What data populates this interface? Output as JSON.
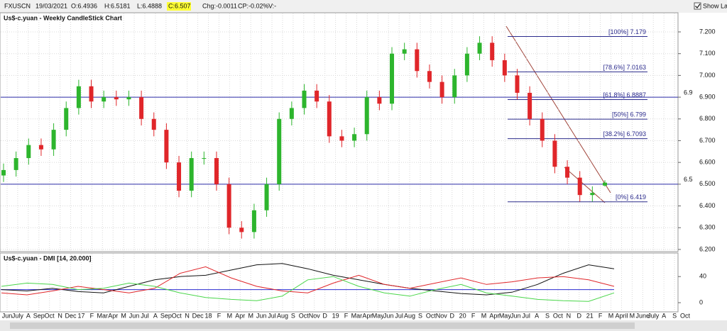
{
  "toolbar": {
    "symbol": "FXUSCN",
    "date": "19/03/2021",
    "open": "O:6.4936",
    "high": "H:6.5181",
    "low": "L:6.4888",
    "close": "C:6.507",
    "change": "Chg:-0.0011",
    "change_pct": "CP:-0.02%",
    "volume": "V:-",
    "show_last": "Show Last"
  },
  "x_labels": [
    "Jun",
    "July",
    "A",
    "Sep",
    "Oct",
    "N",
    "Dec",
    "17",
    "F",
    "Mar",
    "Apr",
    "M",
    "Jun",
    "Jul",
    "A",
    "Sep",
    "Oct",
    "N",
    "Dec",
    "18",
    "F",
    "M",
    "Apr",
    "M",
    "Jun",
    "Jul",
    "Aug",
    "S",
    "Oct",
    "Nov",
    "D",
    "19",
    "F",
    "Mar",
    "Apr",
    "May",
    "Jun",
    "Jul",
    "Aug",
    "S",
    "Oct",
    "Nov",
    "D",
    "20",
    "F",
    "M",
    "Apr",
    "May",
    "Jun",
    "Jul",
    "A",
    "S",
    "Oct",
    "N",
    "D",
    "21",
    "F",
    "M",
    "April",
    "M",
    "June",
    "July",
    "A",
    "S",
    "Oct"
  ],
  "chart_data": [
    {
      "type": "candlestick",
      "title": "Us$-c.yuan - Weekly CandleStick Chart",
      "up_color": "#2db52d",
      "down_color": "#e0262a",
      "open": [
        6.54,
        6.565,
        6.62,
        6.68,
        6.66,
        6.75,
        6.85,
        6.95,
        6.88,
        6.9,
        6.89,
        6.9,
        6.8,
        6.75,
        6.6,
        6.47,
        6.62,
        6.62,
        6.5,
        6.3,
        6.28,
        6.38,
        6.5,
        6.8,
        6.85,
        6.93,
        6.88,
        6.72,
        6.7,
        6.73,
        6.9,
        6.87,
        7.1,
        7.12,
        7.02,
        6.97,
        6.9,
        7.0,
        7.1,
        7.15,
        7.07,
        7.0,
        6.92,
        6.8,
        6.7,
        6.58,
        6.53,
        6.45,
        6.4936
      ],
      "high": [
        6.595,
        6.65,
        6.71,
        6.71,
        6.78,
        6.88,
        6.98,
        6.98,
        6.93,
        6.93,
        6.93,
        6.93,
        6.83,
        6.78,
        6.63,
        6.65,
        6.65,
        6.65,
        6.53,
        6.33,
        6.41,
        6.53,
        6.83,
        6.88,
        6.96,
        6.96,
        6.91,
        6.75,
        6.76,
        6.93,
        6.93,
        7.13,
        7.15,
        7.15,
        7.05,
        7.0,
        7.03,
        7.13,
        7.18,
        7.18,
        7.1,
        7.03,
        6.95,
        6.83,
        6.73,
        6.61,
        6.56,
        6.49,
        6.5181
      ],
      "low": [
        6.51,
        6.535,
        6.59,
        6.63,
        6.63,
        6.72,
        6.82,
        6.85,
        6.85,
        6.86,
        6.86,
        6.77,
        6.72,
        6.57,
        6.44,
        6.44,
        6.59,
        6.47,
        6.27,
        6.25,
        6.25,
        6.35,
        6.47,
        6.77,
        6.82,
        6.85,
        6.69,
        6.67,
        6.67,
        6.7,
        6.84,
        6.84,
        7.07,
        6.99,
        6.94,
        6.87,
        6.87,
        6.97,
        7.07,
        7.04,
        6.97,
        6.89,
        6.77,
        6.67,
        6.55,
        6.5,
        6.42,
        6.42,
        6.4888
      ],
      "close": [
        6.565,
        6.62,
        6.68,
        6.66,
        6.75,
        6.85,
        6.95,
        6.88,
        6.9,
        6.89,
        6.9,
        6.8,
        6.75,
        6.6,
        6.47,
        6.62,
        6.62,
        6.5,
        6.3,
        6.28,
        6.38,
        6.5,
        6.8,
        6.85,
        6.93,
        6.88,
        6.72,
        6.7,
        6.73,
        6.9,
        6.87,
        7.1,
        7.12,
        7.02,
        6.97,
        6.9,
        7.0,
        7.1,
        7.15,
        7.07,
        7.0,
        6.92,
        6.8,
        6.7,
        6.58,
        6.53,
        6.45,
        6.46,
        6.507
      ],
      "ylim": [
        6.19,
        7.288
      ],
      "yticks": [
        {
          "value": 6.2,
          "label": "6.200"
        },
        {
          "value": 6.3,
          "label": "6.300"
        },
        {
          "value": 6.4,
          "label": "6.400"
        },
        {
          "value": 6.5,
          "label": "6.500"
        },
        {
          "value": 6.6,
          "label": "6.600"
        },
        {
          "value": 6.7,
          "label": "6.700"
        },
        {
          "value": 6.8,
          "label": "6.800"
        },
        {
          "value": 6.9,
          "label": "6.900"
        },
        {
          "value": 7.0,
          "label": "7.000"
        },
        {
          "value": 7.1,
          "label": "7.100"
        },
        {
          "value": 7.2,
          "label": "7.200"
        }
      ],
      "grid": true,
      "hlines": [
        6.9,
        6.5
      ],
      "hline_color": "#2b2ba6",
      "fib_color": "#2b2b8c",
      "fib_levels": [
        {
          "value": 7.179,
          "label": "[100%] 7.179"
        },
        {
          "value": 7.0163,
          "label": "[78.6%] 7.0163"
        },
        {
          "value": 6.8887,
          "label": "[61.8%] 6.8887"
        },
        {
          "value": 6.799,
          "label": "[50%] 6.799"
        },
        {
          "value": 6.7093,
          "label": "[38.2%] 6.7093"
        },
        {
          "value": 6.419,
          "label": "[0%] 6.419"
        }
      ]
    },
    {
      "type": "line",
      "title": "Us$-c.yuan - DMI [14, 20.000]",
      "series": [
        {
          "color": "#111111",
          "values": [
            20,
            18,
            22,
            17,
            15,
            25,
            35,
            40,
            42,
            50,
            58,
            60,
            52,
            42,
            35,
            28,
            22,
            18,
            14,
            12,
            16,
            28,
            45,
            58,
            52
          ]
        },
        {
          "color": "#e0262a",
          "values": [
            15,
            12,
            18,
            25,
            20,
            15,
            22,
            45,
            55,
            38,
            25,
            18,
            15,
            30,
            42,
            28,
            22,
            30,
            38,
            28,
            32,
            38,
            40,
            35,
            25
          ]
        },
        {
          "color": "#49d649",
          "values": [
            25,
            30,
            28,
            20,
            22,
            30,
            25,
            15,
            8,
            5,
            3,
            10,
            35,
            40,
            25,
            15,
            10,
            20,
            28,
            15,
            10,
            5,
            3,
            2,
            15
          ]
        }
      ],
      "threshold": 20,
      "threshold_color": "#2b2bd0",
      "ylim": [
        -13,
        75
      ],
      "yticks": [
        0,
        40
      ]
    }
  ]
}
